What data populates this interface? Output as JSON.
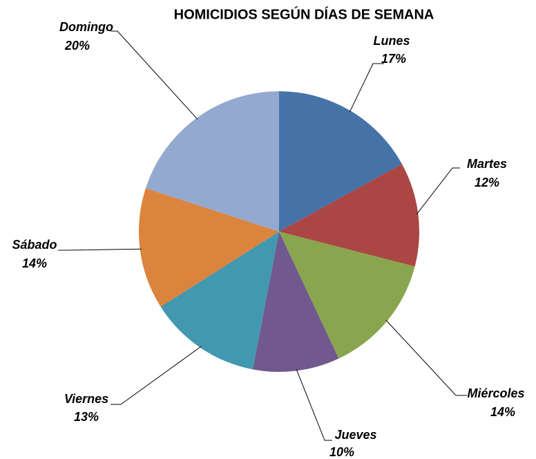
{
  "chart_data": {
    "type": "pie",
    "title": "HOMICIDIOS SEGÚN DÍAS DE SEMANA",
    "categories": [
      "Lunes",
      "Martes",
      "Miércoles",
      "Jueves",
      "Viernes",
      "Sábado",
      "Domingo"
    ],
    "values": [
      17,
      12,
      14,
      10,
      13,
      14,
      20
    ],
    "value_labels": [
      "17%",
      "12%",
      "14%",
      "10%",
      "13%",
      "14%",
      "20%"
    ],
    "colors": [
      "#4572a7",
      "#aa4643",
      "#89a54e",
      "#71588f",
      "#4198af",
      "#db843d",
      "#93a9cf"
    ]
  }
}
